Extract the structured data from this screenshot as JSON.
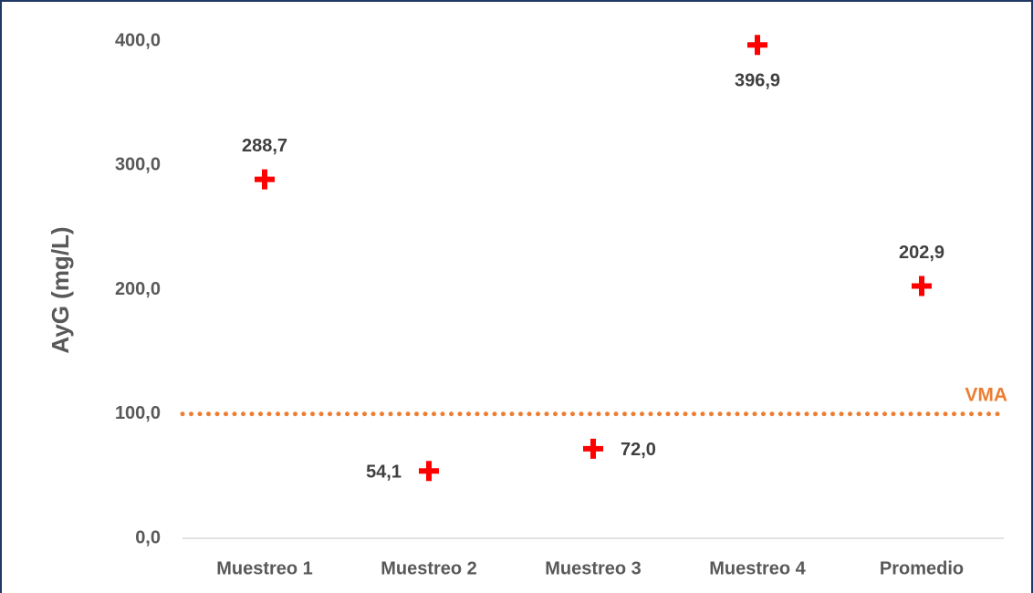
{
  "chart_data": {
    "type": "scatter",
    "y_label": "AyG (mg/L)",
    "categories": [
      "Muestreo 1",
      "Muestreo 2",
      "Muestreo 3",
      "Muestreo 4",
      "Promedio"
    ],
    "values": [
      288.7,
      54.1,
      72.0,
      396.9,
      202.9
    ],
    "value_labels": [
      "288,7",
      "54,1",
      "72,0",
      "396,9",
      "202,9"
    ],
    "color": "#ff0000",
    "marker": "plus",
    "ylim": [
      0,
      400
    ],
    "yticks": [
      {
        "value": 0,
        "label": "0,0"
      },
      {
        "value": 100,
        "label": "100,0"
      },
      {
        "value": 200,
        "label": "200,0"
      },
      {
        "value": 300,
        "label": "300,0"
      },
      {
        "value": 400,
        "label": "400,0"
      }
    ],
    "grid": false,
    "reference_lines": [
      {
        "value": 100,
        "label": "VMA",
        "color": "#ed7d31",
        "style": "dotted"
      }
    ]
  }
}
